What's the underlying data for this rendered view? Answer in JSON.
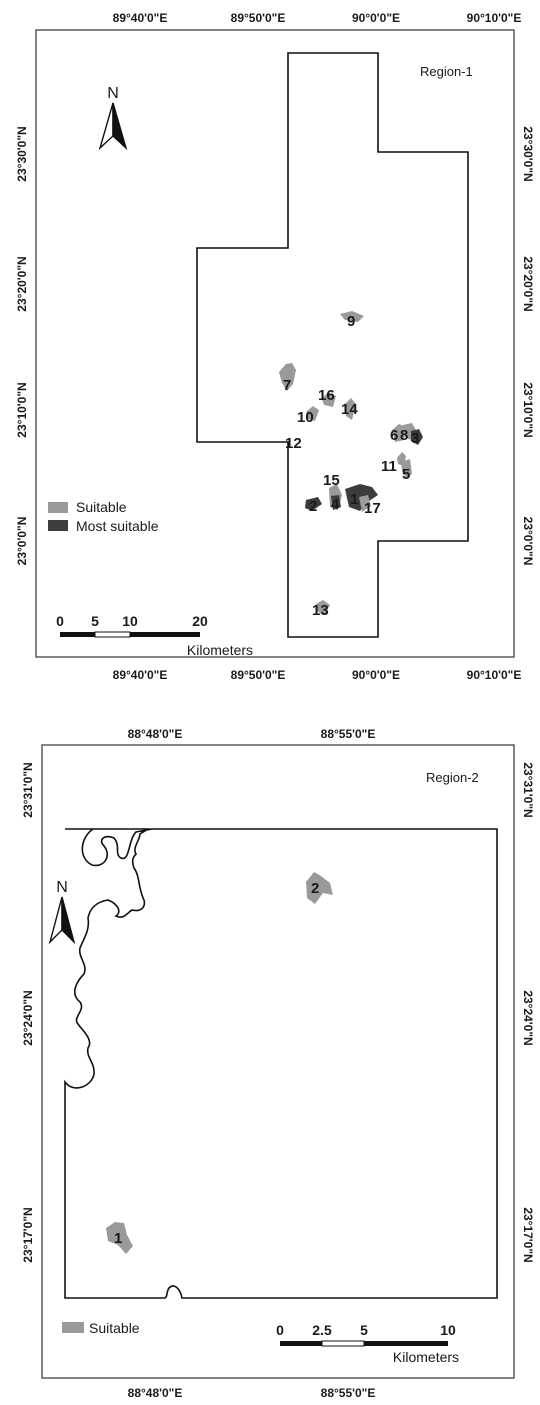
{
  "maps": [
    {
      "id": "region-1",
      "title": "Region-1",
      "north_label": "N",
      "top_ticks": [
        "89°40'0\"E",
        "89°50'0\"E",
        "90°0'0\"E",
        "90°10'0\"E"
      ],
      "bottom_ticks": [
        "89°40'0\"E",
        "89°50'0\"E",
        "90°0'0\"E",
        "90°10'0\"E"
      ],
      "left_ticks": [
        "23°30'0\"N",
        "23°20'0\"N",
        "23°10'0\"N",
        "23°0'0\"N"
      ],
      "right_ticks": [
        "23°30'0\"N",
        "23°20'0\"N",
        "23°10'0\"N",
        "23°0'0\"N"
      ],
      "legend": [
        {
          "label": "Suitable",
          "color": "#9a9a9a"
        },
        {
          "label": "Most suitable",
          "color": "#3c3c3c"
        }
      ],
      "scale_labels": [
        "0",
        "5",
        "10",
        "20"
      ],
      "scale_unit": "Kilometers",
      "sites": [
        "1",
        "2",
        "3",
        "4",
        "5",
        "6",
        "7",
        "8",
        "9",
        "10",
        "11",
        "12",
        "13",
        "14",
        "15",
        "16",
        "17"
      ]
    },
    {
      "id": "region-2",
      "title": "Region-2",
      "north_label": "N",
      "top_ticks": [
        "88°48'0\"E",
        "88°55'0\"E"
      ],
      "bottom_ticks": [
        "88°48'0\"E",
        "88°55'0\"E"
      ],
      "left_ticks": [
        "23°31'0\"N",
        "23°24'0\"N",
        "23°17'0\"N"
      ],
      "right_ticks": [
        "23°31'0\"N",
        "23°24'0\"N",
        "23°17'0\"N"
      ],
      "legend": [
        {
          "label": "Suitable",
          "color": "#9a9a9a"
        }
      ],
      "scale_labels": [
        "0",
        "2.5",
        "5",
        "10"
      ],
      "scale_unit": "Kilometers",
      "sites": [
        "1",
        "2"
      ]
    }
  ],
  "colors": {
    "suitable": "#9a9a9a",
    "most_suitable": "#3c3c3c",
    "boundary": "#111111",
    "frame": "#333333"
  }
}
